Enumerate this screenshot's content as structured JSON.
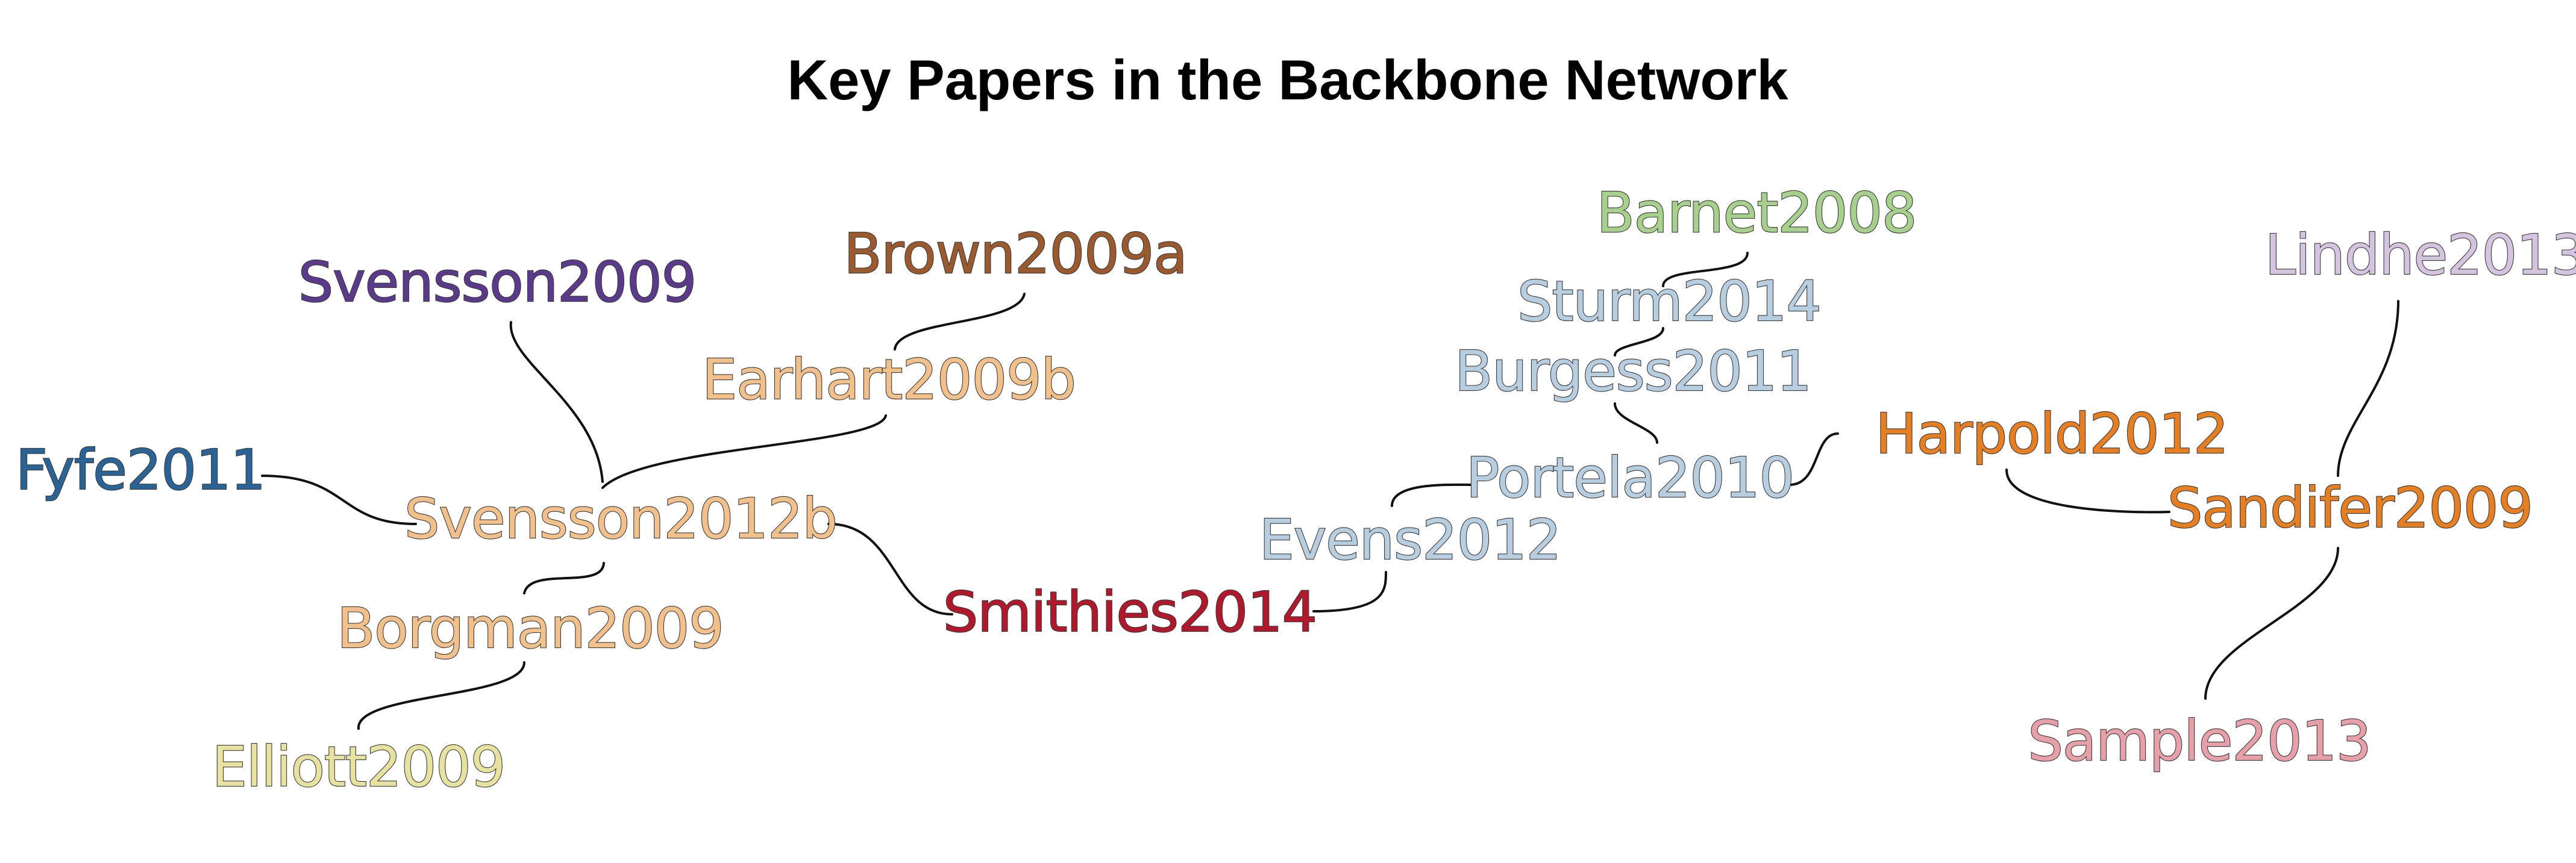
{
  "title": "Key Papers in the Backbone Network",
  "nodes": [
    {
      "id": "svensson2009",
      "label": "Svensson2009",
      "color": "#5b3a8c"
    },
    {
      "id": "brown2009a",
      "label": "Brown2009a",
      "color": "#9a5a2e"
    },
    {
      "id": "earhart2009b",
      "label": "Earhart2009b",
      "color": "#f2c08a"
    },
    {
      "id": "fyfe2011",
      "label": "Fyfe2011",
      "color": "#2a6496"
    },
    {
      "id": "svensson2012b",
      "label": "Svensson2012b",
      "color": "#f2c08a"
    },
    {
      "id": "borgman2009",
      "label": "Borgman2009",
      "color": "#f2c08a"
    },
    {
      "id": "elliott2009",
      "label": "Elliott2009",
      "color": "#e8e2a0"
    },
    {
      "id": "smithies2014",
      "label": "Smithies2014",
      "color": "#b2182b"
    },
    {
      "id": "evens2012",
      "label": "Evens2012",
      "color": "#b7cde0"
    },
    {
      "id": "portela2010",
      "label": "Portela2010",
      "color": "#b7cde0"
    },
    {
      "id": "burgess2011",
      "label": "Burgess2011",
      "color": "#b7cde0"
    },
    {
      "id": "sturm2014",
      "label": "Sturm2014",
      "color": "#b7cde0"
    },
    {
      "id": "barnet2008",
      "label": "Barnet2008",
      "color": "#a8d08d"
    },
    {
      "id": "harpold2012",
      "label": "Harpold2012",
      "color": "#e67e22"
    },
    {
      "id": "sandifer2009",
      "label": "Sandifer2009",
      "color": "#e67e22"
    },
    {
      "id": "lindhe2013",
      "label": "Lindhe2013",
      "color": "#d4c4e0"
    },
    {
      "id": "sample2013",
      "label": "Sample2013",
      "color": "#e8a0a8"
    }
  ],
  "edges": [
    [
      "svensson2009",
      "svensson2012b"
    ],
    [
      "brown2009a",
      "earhart2009b"
    ],
    [
      "earhart2009b",
      "svensson2012b"
    ],
    [
      "fyfe2011",
      "svensson2012b"
    ],
    [
      "svensson2012b",
      "borgman2009"
    ],
    [
      "borgman2009",
      "elliott2009"
    ],
    [
      "svensson2012b",
      "smithies2014"
    ],
    [
      "smithies2014",
      "evens2012"
    ],
    [
      "evens2012",
      "portela2010"
    ],
    [
      "portela2010",
      "burgess2011"
    ],
    [
      "burgess2011",
      "sturm2014"
    ],
    [
      "sturm2014",
      "barnet2008"
    ],
    [
      "portela2010",
      "harpold2012"
    ],
    [
      "harpold2012",
      "sandifer2009"
    ],
    [
      "sandifer2009",
      "lindhe2013"
    ],
    [
      "sandifer2009",
      "sample2013"
    ]
  ]
}
